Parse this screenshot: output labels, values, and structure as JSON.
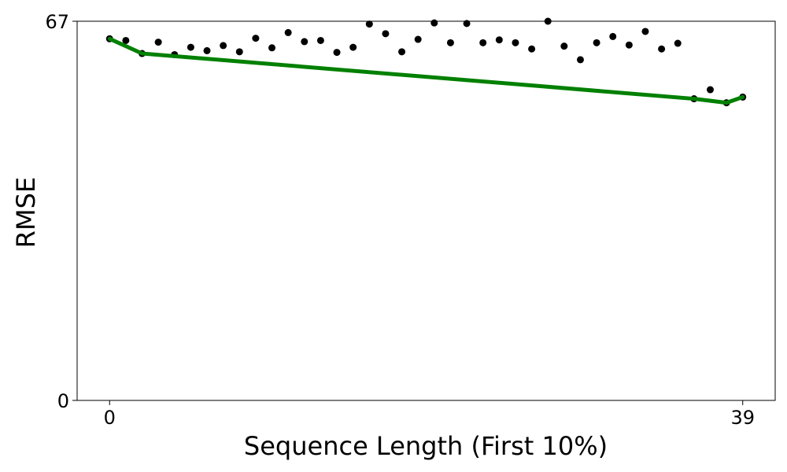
{
  "chart_data": {
    "type": "scatter",
    "title": "",
    "xlabel": "Sequence Length (First 10%)",
    "ylabel": "RMSE",
    "xlim": [
      -2,
      41
    ],
    "ylim": [
      0,
      67
    ],
    "x_ticks": [
      0,
      39
    ],
    "x_tick_labels": [
      "0",
      "39"
    ],
    "y_ticks": [
      0,
      67
    ],
    "y_tick_labels": [
      "0",
      "67"
    ],
    "grid": false,
    "legend": "none",
    "series": [
      {
        "kind": "scatter",
        "color": "#000000",
        "x": [
          0,
          1,
          2,
          3,
          4,
          5,
          6,
          7,
          8,
          9,
          10,
          11,
          12,
          13,
          14,
          15,
          16,
          17,
          18,
          19,
          20,
          21,
          22,
          23,
          24,
          25,
          26,
          27,
          28,
          29,
          30,
          31,
          32,
          33,
          34,
          35,
          36,
          37,
          38,
          39
        ],
        "y": [
          63.9,
          63.6,
          61.3,
          63.3,
          61.1,
          62.4,
          61.8,
          62.7,
          61.6,
          64.0,
          62.3,
          65.0,
          63.4,
          63.6,
          61.5,
          62.4,
          66.5,
          64.8,
          61.6,
          63.8,
          66.7,
          63.2,
          66.6,
          63.2,
          63.7,
          63.2,
          62.1,
          67.0,
          62.6,
          60.2,
          63.2,
          64.3,
          62.8,
          65.2,
          62.1,
          63.1,
          53.3,
          54.9,
          52.6,
          53.6
        ]
      },
      {
        "kind": "line",
        "color": "#008000",
        "x": [
          0,
          2,
          36,
          38,
          39
        ],
        "y": [
          63.9,
          61.3,
          53.3,
          52.6,
          53.6
        ]
      }
    ]
  }
}
